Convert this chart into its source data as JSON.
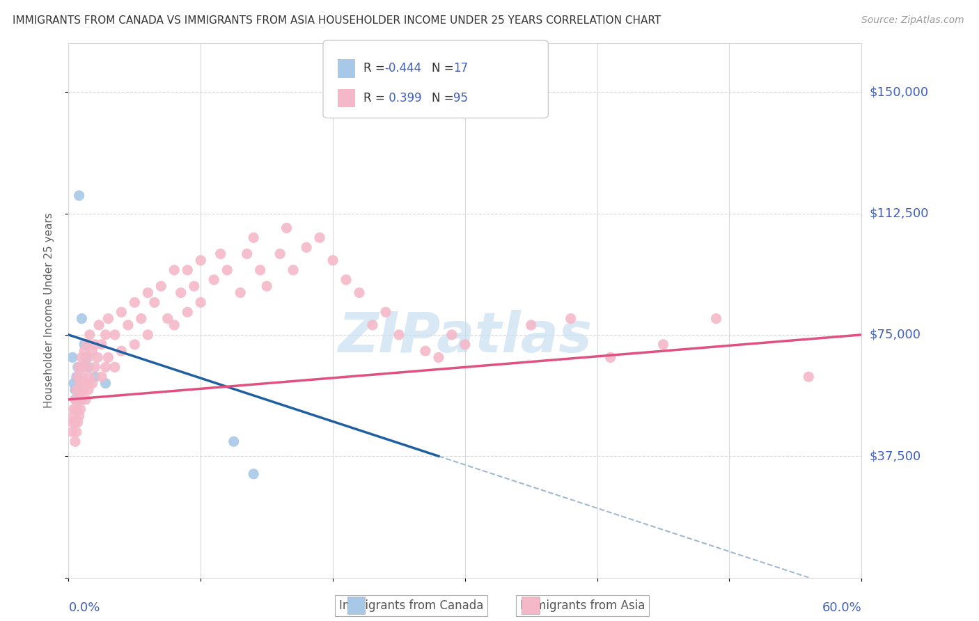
{
  "title": "IMMIGRANTS FROM CANADA VS IMMIGRANTS FROM ASIA HOUSEHOLDER INCOME UNDER 25 YEARS CORRELATION CHART",
  "source": "Source: ZipAtlas.com",
  "ylabel": "Householder Income Under 25 years",
  "yticks": [
    0,
    37500,
    75000,
    112500,
    150000
  ],
  "ytick_labels": [
    "",
    "$37,500",
    "$75,000",
    "$112,500",
    "$150,000"
  ],
  "xlim": [
    0.0,
    0.6
  ],
  "ylim": [
    0,
    165000
  ],
  "canada_points": [
    [
      0.003,
      68000
    ],
    [
      0.004,
      60000
    ],
    [
      0.005,
      58000
    ],
    [
      0.005,
      55000
    ],
    [
      0.006,
      62000
    ],
    [
      0.006,
      58000
    ],
    [
      0.007,
      55000
    ],
    [
      0.007,
      65000
    ],
    [
      0.008,
      118000
    ],
    [
      0.01,
      80000
    ],
    [
      0.012,
      72000
    ],
    [
      0.013,
      68000
    ],
    [
      0.015,
      65000
    ],
    [
      0.02,
      62000
    ],
    [
      0.028,
      60000
    ],
    [
      0.125,
      42000
    ],
    [
      0.14,
      32000
    ]
  ],
  "asia_points": [
    [
      0.003,
      48000
    ],
    [
      0.003,
      45000
    ],
    [
      0.004,
      52000
    ],
    [
      0.004,
      50000
    ],
    [
      0.005,
      55000
    ],
    [
      0.005,
      48000
    ],
    [
      0.005,
      42000
    ],
    [
      0.006,
      58000
    ],
    [
      0.006,
      52000
    ],
    [
      0.006,
      45000
    ],
    [
      0.007,
      62000
    ],
    [
      0.007,
      55000
    ],
    [
      0.007,
      48000
    ],
    [
      0.008,
      65000
    ],
    [
      0.008,
      58000
    ],
    [
      0.008,
      50000
    ],
    [
      0.009,
      60000
    ],
    [
      0.009,
      52000
    ],
    [
      0.01,
      68000
    ],
    [
      0.01,
      62000
    ],
    [
      0.01,
      55000
    ],
    [
      0.011,
      65000
    ],
    [
      0.011,
      58000
    ],
    [
      0.012,
      70000
    ],
    [
      0.012,
      60000
    ],
    [
      0.013,
      65000
    ],
    [
      0.013,
      55000
    ],
    [
      0.014,
      72000
    ],
    [
      0.014,
      60000
    ],
    [
      0.015,
      68000
    ],
    [
      0.015,
      58000
    ],
    [
      0.016,
      75000
    ],
    [
      0.016,
      62000
    ],
    [
      0.018,
      70000
    ],
    [
      0.018,
      60000
    ],
    [
      0.02,
      72000
    ],
    [
      0.02,
      65000
    ],
    [
      0.022,
      68000
    ],
    [
      0.023,
      78000
    ],
    [
      0.025,
      72000
    ],
    [
      0.025,
      62000
    ],
    [
      0.028,
      75000
    ],
    [
      0.028,
      65000
    ],
    [
      0.03,
      80000
    ],
    [
      0.03,
      68000
    ],
    [
      0.035,
      75000
    ],
    [
      0.035,
      65000
    ],
    [
      0.04,
      82000
    ],
    [
      0.04,
      70000
    ],
    [
      0.045,
      78000
    ],
    [
      0.05,
      85000
    ],
    [
      0.05,
      72000
    ],
    [
      0.055,
      80000
    ],
    [
      0.06,
      88000
    ],
    [
      0.06,
      75000
    ],
    [
      0.065,
      85000
    ],
    [
      0.07,
      90000
    ],
    [
      0.075,
      80000
    ],
    [
      0.08,
      95000
    ],
    [
      0.08,
      78000
    ],
    [
      0.085,
      88000
    ],
    [
      0.09,
      95000
    ],
    [
      0.09,
      82000
    ],
    [
      0.095,
      90000
    ],
    [
      0.1,
      98000
    ],
    [
      0.1,
      85000
    ],
    [
      0.11,
      92000
    ],
    [
      0.115,
      100000
    ],
    [
      0.12,
      95000
    ],
    [
      0.13,
      88000
    ],
    [
      0.135,
      100000
    ],
    [
      0.14,
      105000
    ],
    [
      0.145,
      95000
    ],
    [
      0.15,
      90000
    ],
    [
      0.16,
      100000
    ],
    [
      0.165,
      108000
    ],
    [
      0.17,
      95000
    ],
    [
      0.18,
      102000
    ],
    [
      0.19,
      105000
    ],
    [
      0.2,
      98000
    ],
    [
      0.21,
      92000
    ],
    [
      0.22,
      88000
    ],
    [
      0.23,
      78000
    ],
    [
      0.24,
      82000
    ],
    [
      0.25,
      75000
    ],
    [
      0.27,
      70000
    ],
    [
      0.28,
      68000
    ],
    [
      0.29,
      75000
    ],
    [
      0.3,
      72000
    ],
    [
      0.35,
      78000
    ],
    [
      0.38,
      80000
    ],
    [
      0.41,
      68000
    ],
    [
      0.45,
      72000
    ],
    [
      0.49,
      80000
    ],
    [
      0.56,
      62000
    ]
  ],
  "canada_color": "#a8c8e8",
  "asia_color": "#f4b8c8",
  "canada_line_color": "#2060a0",
  "asia_line_color": "#e05080",
  "dashed_line_color": "#a0b8d0",
  "watermark_text": "ZIPatlas",
  "watermark_color": "#c8dff0",
  "background_color": "#ffffff",
  "grid_color": "#d8d8d8",
  "legend_r1": "R = -0.444",
  "legend_n1": "N = 17",
  "legend_r2": "R =  0.399",
  "legend_n2": "N = 95",
  "legend_color1": "#a8c8e8",
  "legend_color2": "#f4b8c8",
  "legend_text_color": "#4060c0",
  "axis_label_color": "#4060c0",
  "ylabel_color": "#606060",
  "title_color": "#333333",
  "source_color": "#999999"
}
